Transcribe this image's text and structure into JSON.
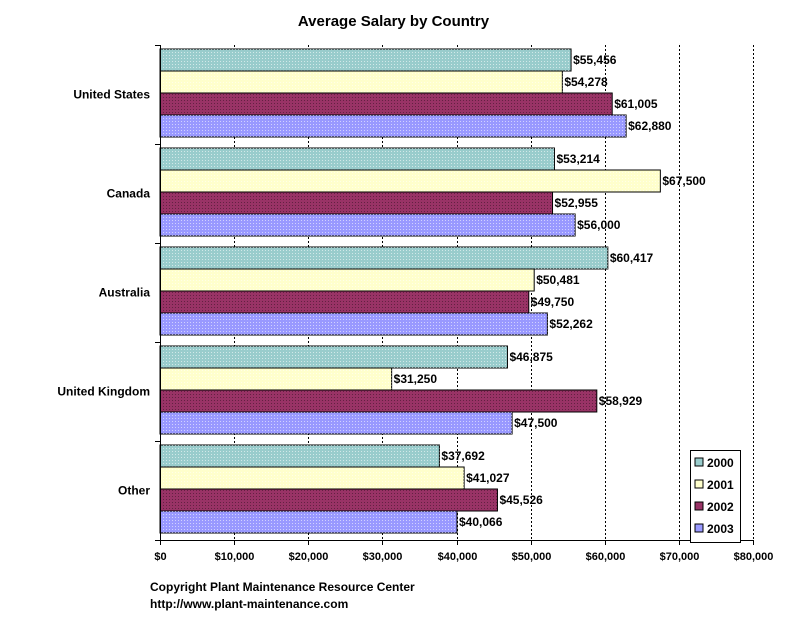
{
  "chart_data": {
    "type": "bar",
    "orientation": "horizontal",
    "title": "Average Salary by Country",
    "categories": [
      "United States",
      "Canada",
      "Australia",
      "United Kingdom",
      "Other"
    ],
    "series": [
      {
        "name": "2000",
        "color": "#99cccc",
        "values": [
          55456,
          53214,
          60417,
          46875,
          37692
        ],
        "labels": [
          "$55,456",
          "$53,214",
          "$60,417",
          "$46,875",
          "$37,692"
        ]
      },
      {
        "name": "2001",
        "color": "#ffffcc",
        "values": [
          54278,
          67500,
          50481,
          31250,
          41027
        ],
        "labels": [
          "$54,278",
          "$67,500",
          "$50,481",
          "$31,250",
          "$41,027"
        ]
      },
      {
        "name": "2002",
        "color": "#993366",
        "values": [
          61005,
          52955,
          49750,
          58929,
          45526
        ],
        "labels": [
          "$61,005",
          "$52,955",
          "$49,750",
          "$58,929",
          "$45,526"
        ]
      },
      {
        "name": "2003",
        "color": "#9999ff",
        "values": [
          62880,
          56000,
          52262,
          47500,
          40066
        ],
        "labels": [
          "$62,880",
          "$56,000",
          "$52,262",
          "$47,500",
          "$40,066"
        ]
      }
    ],
    "xlim": [
      0,
      80000
    ],
    "xticks": [
      0,
      10000,
      20000,
      30000,
      40000,
      50000,
      60000,
      70000,
      80000
    ],
    "xtick_labels": [
      "$0",
      "$10,000",
      "$20,000",
      "$30,000",
      "$40,000",
      "$50,000",
      "$60,000",
      "$70,000",
      "$80,000"
    ],
    "grid": "vertical dotted",
    "legend_position": "bottom-right"
  },
  "footer": {
    "line1": "Copyright Plant Maintenance Resource Center",
    "line2": "http://www.plant-maintenance.com"
  }
}
